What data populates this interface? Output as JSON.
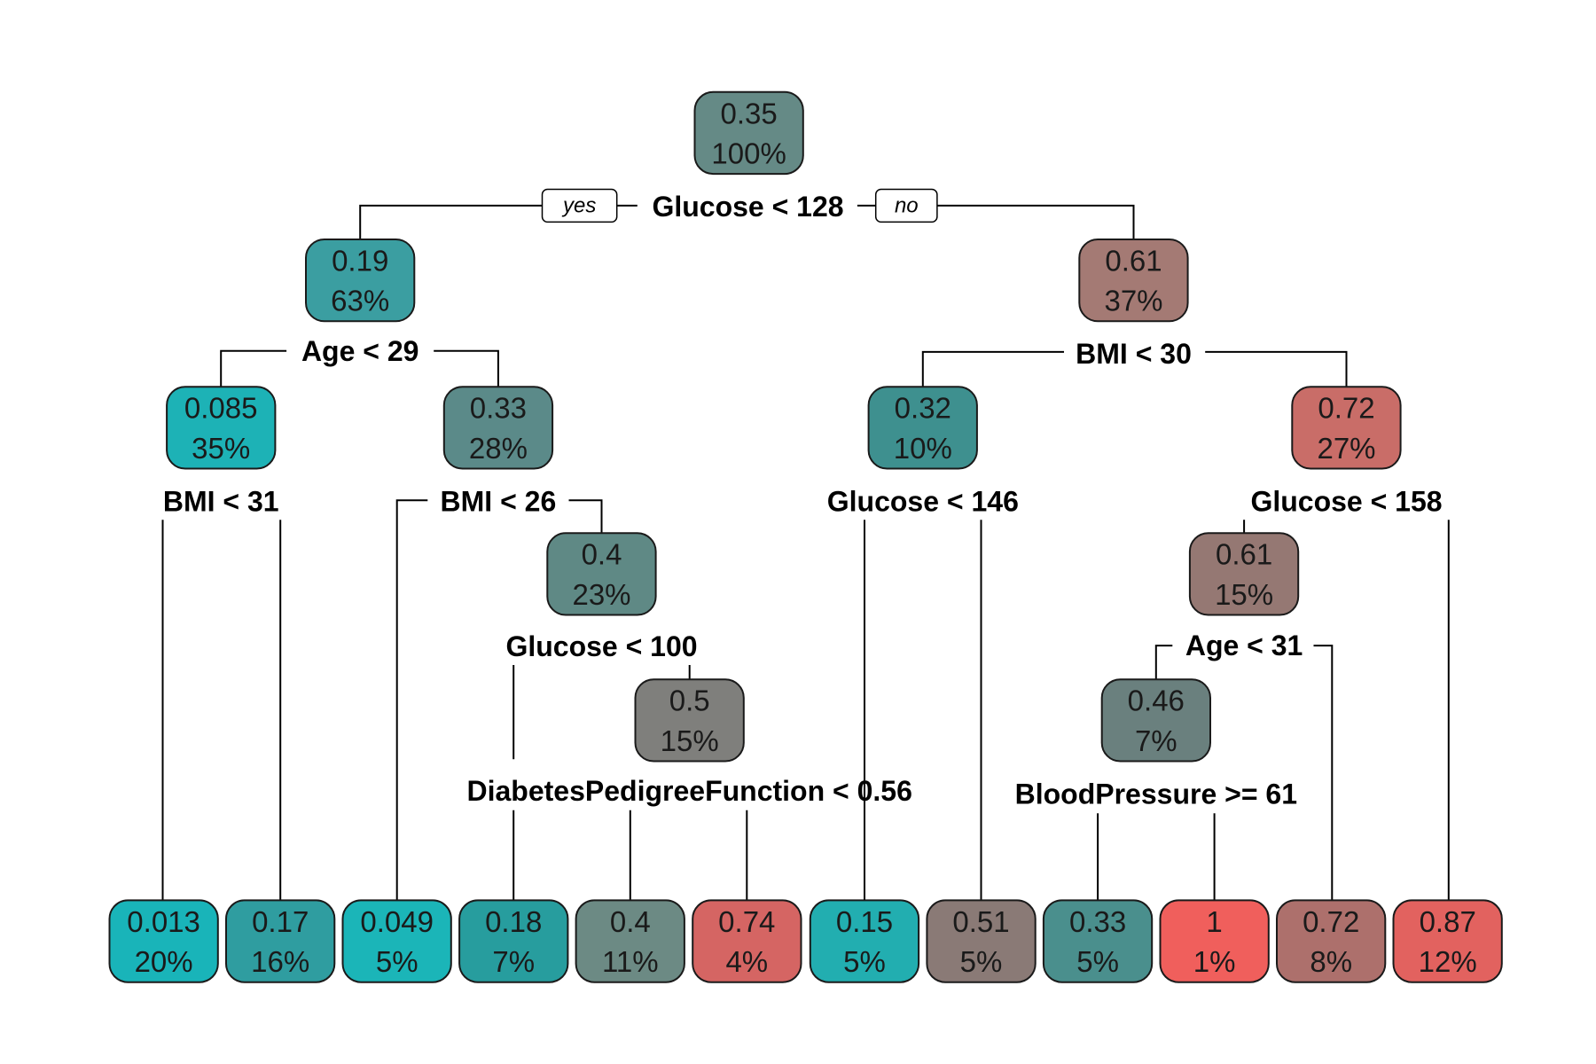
{
  "branch_labels": {
    "yes": "yes",
    "no": "no"
  },
  "nodes": [
    {
      "id": "n1",
      "value": "0.35",
      "percent": "100%",
      "color": "#658a86"
    },
    {
      "id": "n2",
      "value": "0.19",
      "percent": "63%",
      "color": "#3b9ea1"
    },
    {
      "id": "n3",
      "value": "0.61",
      "percent": "37%",
      "color": "#a47a74"
    },
    {
      "id": "n4",
      "value": "0.085",
      "percent": "35%",
      "color": "#1db2b6"
    },
    {
      "id": "n5",
      "value": "0.33",
      "percent": "28%",
      "color": "#5b8a89"
    },
    {
      "id": "n6",
      "value": "0.32",
      "percent": "10%",
      "color": "#3e908f"
    },
    {
      "id": "n7",
      "value": "0.72",
      "percent": "27%",
      "color": "#c96d68"
    },
    {
      "id": "n8",
      "value": "0.4",
      "percent": "23%",
      "color": "#5f8985"
    },
    {
      "id": "n9",
      "value": "0.61",
      "percent": "15%",
      "color": "#957873"
    },
    {
      "id": "n10",
      "value": "0.5",
      "percent": "15%",
      "color": "#7f7f7c"
    },
    {
      "id": "n11",
      "value": "0.46",
      "percent": "7%",
      "color": "#6a807e"
    },
    {
      "id": "l1",
      "value": "0.013",
      "percent": "20%",
      "color": "#19b4b9"
    },
    {
      "id": "l2",
      "value": "0.17",
      "percent": "16%",
      "color": "#2f9da0"
    },
    {
      "id": "l3",
      "value": "0.049",
      "percent": "5%",
      "color": "#1bb5b8"
    },
    {
      "id": "l4",
      "value": "0.18",
      "percent": "7%",
      "color": "#279d9e"
    },
    {
      "id": "l5",
      "value": "0.4",
      "percent": "11%",
      "color": "#6c8a84"
    },
    {
      "id": "l6",
      "value": "0.74",
      "percent": "4%",
      "color": "#d56563"
    },
    {
      "id": "l7",
      "value": "0.15",
      "percent": "5%",
      "color": "#22aeb0"
    },
    {
      "id": "l8",
      "value": "0.51",
      "percent": "5%",
      "color": "#8a7a76"
    },
    {
      "id": "l9",
      "value": "0.33",
      "percent": "5%",
      "color": "#4a8f8d"
    },
    {
      "id": "l10",
      "value": "1",
      "percent": "1%",
      "color": "#f05f5c"
    },
    {
      "id": "l11",
      "value": "0.72",
      "percent": "8%",
      "color": "#ad706c"
    },
    {
      "id": "l12",
      "value": "0.87",
      "percent": "12%",
      "color": "#e2625f"
    }
  ],
  "splits": [
    {
      "id": "s1",
      "text": "Glucose < 128"
    },
    {
      "id": "s2",
      "text": "Age < 29"
    },
    {
      "id": "s3",
      "text": "BMI < 30"
    },
    {
      "id": "s4",
      "text": "BMI < 31"
    },
    {
      "id": "s5",
      "text": "BMI < 26"
    },
    {
      "id": "s6",
      "text": "Glucose < 146"
    },
    {
      "id": "s7",
      "text": "Glucose < 158"
    },
    {
      "id": "s8",
      "text": "Glucose < 100"
    },
    {
      "id": "s9",
      "text": "Age < 31"
    },
    {
      "id": "s10",
      "text": "DiabetesPedigreeFunction < 0.56"
    },
    {
      "id": "s11",
      "text": "BloodPressure >= 61"
    }
  ]
}
